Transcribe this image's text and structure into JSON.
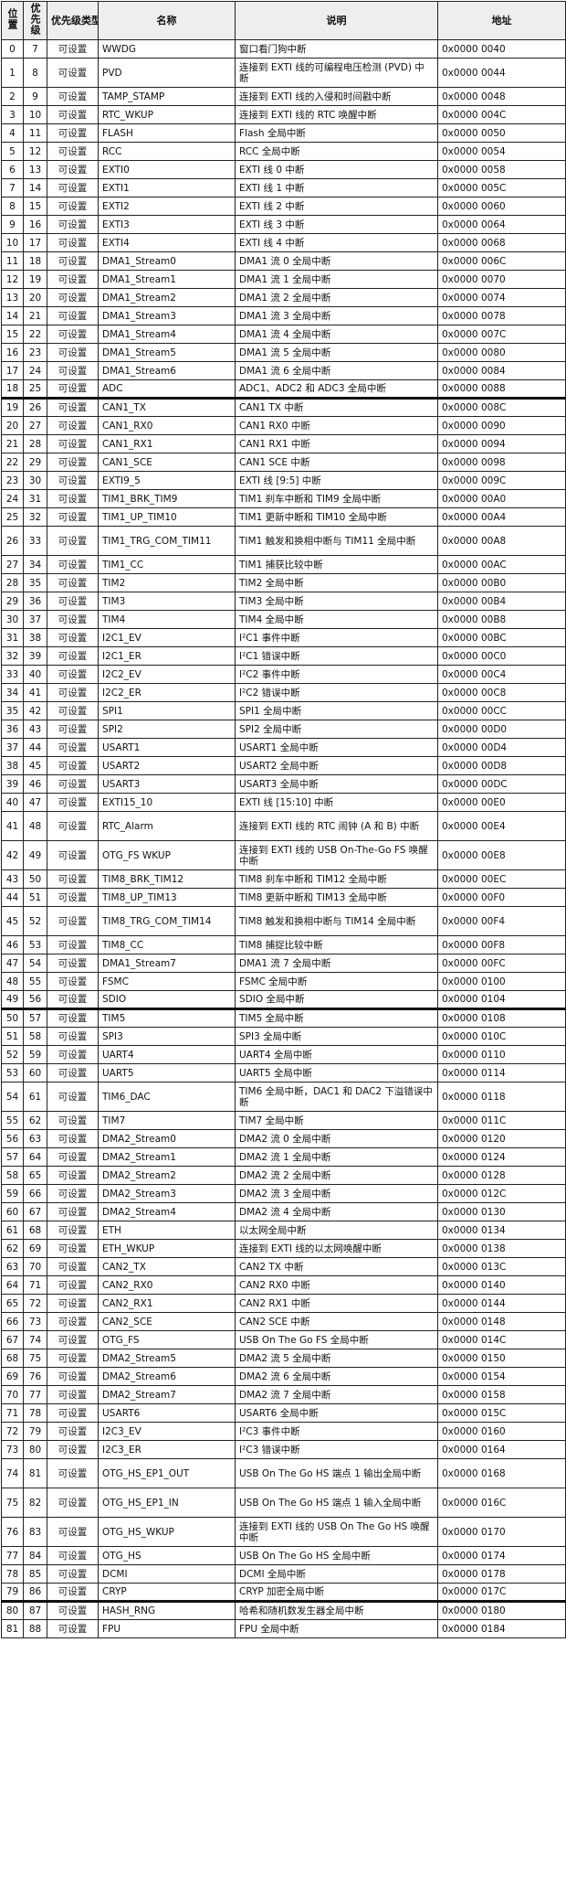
{
  "headers": {
    "position": "位置",
    "priority": "优先级",
    "priority_type": "优先级类型",
    "name": "名称",
    "description": "说明",
    "address": "地址"
  },
  "rows": [
    {
      "pos": "0",
      "pri": "7",
      "type": "可设置",
      "name": "WWDG",
      "desc": "窗口看门狗中断",
      "addr": "0x0000 0040"
    },
    {
      "pos": "1",
      "pri": "8",
      "type": "可设置",
      "name": "PVD",
      "desc": "连接到 EXTI 线的可编程电压检测 (PVD) 中断",
      "addr": "0x0000 0044",
      "tall": true
    },
    {
      "pos": "2",
      "pri": "9",
      "type": "可设置",
      "name": "TAMP_STAMP",
      "desc": "连接到 EXTI 线的入侵和时间戳中断",
      "addr": "0x0000 0048"
    },
    {
      "pos": "3",
      "pri": "10",
      "type": "可设置",
      "name": "RTC_WKUP",
      "desc": "连接到 EXTI 线的 RTC 唤醒中断",
      "addr": "0x0000 004C"
    },
    {
      "pos": "4",
      "pri": "11",
      "type": "可设置",
      "name": "FLASH",
      "desc": "Flash 全局中断",
      "addr": "0x0000 0050"
    },
    {
      "pos": "5",
      "pri": "12",
      "type": "可设置",
      "name": "RCC",
      "desc": "RCC 全局中断",
      "addr": "0x0000 0054"
    },
    {
      "pos": "6",
      "pri": "13",
      "type": "可设置",
      "name": "EXTI0",
      "desc": "EXTI 线 0 中断",
      "addr": "0x0000 0058"
    },
    {
      "pos": "7",
      "pri": "14",
      "type": "可设置",
      "name": "EXTI1",
      "desc": "EXTI 线 1 中断",
      "addr": "0x0000 005C"
    },
    {
      "pos": "8",
      "pri": "15",
      "type": "可设置",
      "name": "EXTI2",
      "desc": "EXTI 线 2 中断",
      "addr": "0x0000 0060"
    },
    {
      "pos": "9",
      "pri": "16",
      "type": "可设置",
      "name": "EXTI3",
      "desc": "EXTI 线 3 中断",
      "addr": "0x0000 0064"
    },
    {
      "pos": "10",
      "pri": "17",
      "type": "可设置",
      "name": "EXTI4",
      "desc": "EXTI 线 4 中断",
      "addr": "0x0000 0068"
    },
    {
      "pos": "11",
      "pri": "18",
      "type": "可设置",
      "name": "DMA1_Stream0",
      "desc": "DMA1 流 0 全局中断",
      "addr": "0x0000 006C"
    },
    {
      "pos": "12",
      "pri": "19",
      "type": "可设置",
      "name": "DMA1_Stream1",
      "desc": "DMA1 流 1 全局中断",
      "addr": "0x0000 0070"
    },
    {
      "pos": "13",
      "pri": "20",
      "type": "可设置",
      "name": "DMA1_Stream2",
      "desc": "DMA1 流 2 全局中断",
      "addr": "0x0000 0074"
    },
    {
      "pos": "14",
      "pri": "21",
      "type": "可设置",
      "name": "DMA1_Stream3",
      "desc": "DMA1 流 3 全局中断",
      "addr": "0x0000 0078"
    },
    {
      "pos": "15",
      "pri": "22",
      "type": "可设置",
      "name": "DMA1_Stream4",
      "desc": "DMA1 流 4 全局中断",
      "addr": "0x0000 007C"
    },
    {
      "pos": "16",
      "pri": "23",
      "type": "可设置",
      "name": "DMA1_Stream5",
      "desc": "DMA1 流 5 全局中断",
      "addr": "0x0000 0080"
    },
    {
      "pos": "17",
      "pri": "24",
      "type": "可设置",
      "name": "DMA1_Stream6",
      "desc": "DMA1 流 6 全局中断",
      "addr": "0x0000 0084"
    },
    {
      "pos": "18",
      "pri": "25",
      "type": "可设置",
      "name": "ADC",
      "desc": "ADC1、ADC2 和 ADC3 全局中断",
      "addr": "0x0000 0088"
    },
    {
      "pos": "19",
      "pri": "26",
      "type": "可设置",
      "name": "CAN1_TX",
      "desc": "CAN1 TX 中断",
      "addr": "0x0000 008C",
      "sep": true
    },
    {
      "pos": "20",
      "pri": "27",
      "type": "可设置",
      "name": "CAN1_RX0",
      "desc": "CAN1 RX0 中断",
      "addr": "0x0000 0090"
    },
    {
      "pos": "21",
      "pri": "28",
      "type": "可设置",
      "name": "CAN1_RX1",
      "desc": "CAN1 RX1 中断",
      "addr": "0x0000 0094"
    },
    {
      "pos": "22",
      "pri": "29",
      "type": "可设置",
      "name": "CAN1_SCE",
      "desc": "CAN1 SCE 中断",
      "addr": "0x0000 0098"
    },
    {
      "pos": "23",
      "pri": "30",
      "type": "可设置",
      "name": "EXTI9_5",
      "desc": "EXTI 线 [9:5] 中断",
      "addr": "0x0000 009C"
    },
    {
      "pos": "24",
      "pri": "31",
      "type": "可设置",
      "name": "TIM1_BRK_TIM9",
      "desc": "TIM1 刹车中断和 TIM9 全局中断",
      "addr": "0x0000 00A0"
    },
    {
      "pos": "25",
      "pri": "32",
      "type": "可设置",
      "name": "TIM1_UP_TIM10",
      "desc": "TIM1 更新中断和 TIM10 全局中断",
      "addr": "0x0000 00A4"
    },
    {
      "pos": "26",
      "pri": "33",
      "type": "可设置",
      "name": "TIM1_TRG_COM_TIM11",
      "desc": "TIM1 触发和换相中断与 TIM11 全局中断",
      "addr": "0x0000 00A8",
      "tall": true
    },
    {
      "pos": "27",
      "pri": "34",
      "type": "可设置",
      "name": "TIM1_CC",
      "desc": "TIM1 捕获比较中断",
      "addr": "0x0000 00AC"
    },
    {
      "pos": "28",
      "pri": "35",
      "type": "可设置",
      "name": "TIM2",
      "desc": "TIM2 全局中断",
      "addr": "0x0000 00B0"
    },
    {
      "pos": "29",
      "pri": "36",
      "type": "可设置",
      "name": "TIM3",
      "desc": "TIM3 全局中断",
      "addr": "0x0000 00B4"
    },
    {
      "pos": "30",
      "pri": "37",
      "type": "可设置",
      "name": "TIM4",
      "desc": "TIM4 全局中断",
      "addr": "0x0000 00B8"
    },
    {
      "pos": "31",
      "pri": "38",
      "type": "可设置",
      "name": "I2C1_EV",
      "desc": "I²C1 事件中断",
      "addr": "0x0000 00BC"
    },
    {
      "pos": "32",
      "pri": "39",
      "type": "可设置",
      "name": "I2C1_ER",
      "desc": "I²C1 错误中断",
      "addr": "0x0000 00C0"
    },
    {
      "pos": "33",
      "pri": "40",
      "type": "可设置",
      "name": "I2C2_EV",
      "desc": "I²C2 事件中断",
      "addr": "0x0000 00C4"
    },
    {
      "pos": "34",
      "pri": "41",
      "type": "可设置",
      "name": "I2C2_ER",
      "desc": "I²C2 错误中断",
      "addr": "0x0000 00C8"
    },
    {
      "pos": "35",
      "pri": "42",
      "type": "可设置",
      "name": "SPI1",
      "desc": "SPI1 全局中断",
      "addr": "0x0000 00CC"
    },
    {
      "pos": "36",
      "pri": "43",
      "type": "可设置",
      "name": "SPI2",
      "desc": "SPI2 全局中断",
      "addr": "0x0000 00D0"
    },
    {
      "pos": "37",
      "pri": "44",
      "type": "可设置",
      "name": "USART1",
      "desc": "USART1 全局中断",
      "addr": "0x0000 00D4"
    },
    {
      "pos": "38",
      "pri": "45",
      "type": "可设置",
      "name": "USART2",
      "desc": "USART2 全局中断",
      "addr": "0x0000 00D8"
    },
    {
      "pos": "39",
      "pri": "46",
      "type": "可设置",
      "name": "USART3",
      "desc": "USART3 全局中断",
      "addr": "0x0000 00DC"
    },
    {
      "pos": "40",
      "pri": "47",
      "type": "可设置",
      "name": "EXTI15_10",
      "desc": "EXTI 线 [15:10] 中断",
      "addr": "0x0000 00E0"
    },
    {
      "pos": "41",
      "pri": "48",
      "type": "可设置",
      "name": "RTC_Alarm",
      "desc": "连接到 EXTI 线的 RTC 闹钟 (A 和 B) 中断",
      "addr": "0x0000 00E4",
      "tall": true
    },
    {
      "pos": "42",
      "pri": "49",
      "type": "可设置",
      "name": "OTG_FS WKUP",
      "desc": "连接到 EXTI 线的 USB On-The-Go FS 唤醒中断",
      "addr": "0x0000 00E8",
      "tall": true
    },
    {
      "pos": "43",
      "pri": "50",
      "type": "可设置",
      "name": "TIM8_BRK_TIM12",
      "desc": "TIM8 刹车中断和 TIM12 全局中断",
      "addr": "0x0000 00EC"
    },
    {
      "pos": "44",
      "pri": "51",
      "type": "可设置",
      "name": "TIM8_UP_TIM13",
      "desc": "TIM8 更新中断和 TIM13 全局中断",
      "addr": "0x0000 00F0"
    },
    {
      "pos": "45",
      "pri": "52",
      "type": "可设置",
      "name": "TIM8_TRG_COM_TIM14",
      "desc": "TIM8 触发和换相中断与 TIM14 全局中断",
      "addr": "0x0000 00F4",
      "tall": true
    },
    {
      "pos": "46",
      "pri": "53",
      "type": "可设置",
      "name": "TIM8_CC",
      "desc": "TIM8 捕捉比较中断",
      "addr": "0x0000 00F8"
    },
    {
      "pos": "47",
      "pri": "54",
      "type": "可设置",
      "name": "DMA1_Stream7",
      "desc": "DMA1 流 7 全局中断",
      "addr": "0x0000 00FC"
    },
    {
      "pos": "48",
      "pri": "55",
      "type": "可设置",
      "name": "FSMC",
      "desc": "FSMC 全局中断",
      "addr": "0x0000 0100"
    },
    {
      "pos": "49",
      "pri": "56",
      "type": "可设置",
      "name": "SDIO",
      "desc": "SDIO 全局中断",
      "addr": "0x0000 0104"
    },
    {
      "pos": "50",
      "pri": "57",
      "type": "可设置",
      "name": "TIM5",
      "desc": "TIM5 全局中断",
      "addr": "0x0000 0108",
      "sep": true
    },
    {
      "pos": "51",
      "pri": "58",
      "type": "可设置",
      "name": "SPI3",
      "desc": "SPI3 全局中断",
      "addr": "0x0000 010C"
    },
    {
      "pos": "52",
      "pri": "59",
      "type": "可设置",
      "name": "UART4",
      "desc": "UART4 全局中断",
      "addr": "0x0000 0110"
    },
    {
      "pos": "53",
      "pri": "60",
      "type": "可设置",
      "name": "UART5",
      "desc": "UART5 全局中断",
      "addr": "0x0000 0114"
    },
    {
      "pos": "54",
      "pri": "61",
      "type": "可设置",
      "name": "TIM6_DAC",
      "desc": "TIM6 全局中断，DAC1 和 DAC2 下溢错误中断",
      "addr": "0x0000 0118",
      "tall": true
    },
    {
      "pos": "55",
      "pri": "62",
      "type": "可设置",
      "name": "TIM7",
      "desc": "TIM7 全局中断",
      "addr": "0x0000 011C"
    },
    {
      "pos": "56",
      "pri": "63",
      "type": "可设置",
      "name": "DMA2_Stream0",
      "desc": "DMA2 流 0 全局中断",
      "addr": "0x0000 0120"
    },
    {
      "pos": "57",
      "pri": "64",
      "type": "可设置",
      "name": "DMA2_Stream1",
      "desc": "DMA2 流 1 全局中断",
      "addr": "0x0000 0124"
    },
    {
      "pos": "58",
      "pri": "65",
      "type": "可设置",
      "name": "DMA2_Stream2",
      "desc": "DMA2 流 2 全局中断",
      "addr": "0x0000 0128"
    },
    {
      "pos": "59",
      "pri": "66",
      "type": "可设置",
      "name": "DMA2_Stream3",
      "desc": "DMA2 流 3 全局中断",
      "addr": "0x0000 012C"
    },
    {
      "pos": "60",
      "pri": "67",
      "type": "可设置",
      "name": "DMA2_Stream4",
      "desc": "DMA2 流 4 全局中断",
      "addr": "0x0000 0130"
    },
    {
      "pos": "61",
      "pri": "68",
      "type": "可设置",
      "name": "ETH",
      "desc": "以太网全局中断",
      "addr": "0x0000 0134"
    },
    {
      "pos": "62",
      "pri": "69",
      "type": "可设置",
      "name": "ETH_WKUP",
      "desc": "连接到 EXTI 线的以太网唤醒中断",
      "addr": "0x0000 0138"
    },
    {
      "pos": "63",
      "pri": "70",
      "type": "可设置",
      "name": "CAN2_TX",
      "desc": "CAN2 TX 中断",
      "addr": "0x0000 013C"
    },
    {
      "pos": "64",
      "pri": "71",
      "type": "可设置",
      "name": "CAN2_RX0",
      "desc": "CAN2 RX0 中断",
      "addr": "0x0000 0140"
    },
    {
      "pos": "65",
      "pri": "72",
      "type": "可设置",
      "name": "CAN2_RX1",
      "desc": "CAN2 RX1 中断",
      "addr": "0x0000 0144"
    },
    {
      "pos": "66",
      "pri": "73",
      "type": "可设置",
      "name": "CAN2_SCE",
      "desc": "CAN2 SCE 中断",
      "addr": "0x0000 0148"
    },
    {
      "pos": "67",
      "pri": "74",
      "type": "可设置",
      "name": "OTG_FS",
      "desc": "USB On The Go FS 全局中断",
      "addr": "0x0000 014C"
    },
    {
      "pos": "68",
      "pri": "75",
      "type": "可设置",
      "name": "DMA2_Stream5",
      "desc": "DMA2 流 5 全局中断",
      "addr": "0x0000 0150"
    },
    {
      "pos": "69",
      "pri": "76",
      "type": "可设置",
      "name": "DMA2_Stream6",
      "desc": "DMA2 流 6 全局中断",
      "addr": "0x0000 0154"
    },
    {
      "pos": "70",
      "pri": "77",
      "type": "可设置",
      "name": "DMA2_Stream7",
      "desc": "DMA2 流 7 全局中断",
      "addr": "0x0000 0158"
    },
    {
      "pos": "71",
      "pri": "78",
      "type": "可设置",
      "name": "USART6",
      "desc": "USART6 全局中断",
      "addr": "0x0000 015C"
    },
    {
      "pos": "72",
      "pri": "79",
      "type": "可设置",
      "name": "I2C3_EV",
      "desc": "I²C3 事件中断",
      "addr": "0x0000 0160"
    },
    {
      "pos": "73",
      "pri": "80",
      "type": "可设置",
      "name": "I2C3_ER",
      "desc": "I²C3 错误中断",
      "addr": "0x0000 0164"
    },
    {
      "pos": "74",
      "pri": "81",
      "type": "可设置",
      "name": "OTG_HS_EP1_OUT",
      "desc": "USB On The Go HS 端点 1 输出全局中断",
      "addr": "0x0000 0168",
      "tall": true
    },
    {
      "pos": "75",
      "pri": "82",
      "type": "可设置",
      "name": "OTG_HS_EP1_IN",
      "desc": "USB On The Go HS 端点 1 输入全局中断",
      "addr": "0x0000 016C",
      "tall": true
    },
    {
      "pos": "76",
      "pri": "83",
      "type": "可设置",
      "name": "OTG_HS_WKUP",
      "desc": "连接到 EXTI 线的 USB On The Go HS 唤醒中断",
      "addr": "0x0000 0170",
      "tall": true
    },
    {
      "pos": "77",
      "pri": "84",
      "type": "可设置",
      "name": "OTG_HS",
      "desc": "USB On The Go HS 全局中断",
      "addr": "0x0000 0174"
    },
    {
      "pos": "78",
      "pri": "85",
      "type": "可设置",
      "name": "DCMI",
      "desc": "DCMI 全局中断",
      "addr": "0x0000 0178"
    },
    {
      "pos": "79",
      "pri": "86",
      "type": "可设置",
      "name": "CRYP",
      "desc": "CRYP 加密全局中断",
      "addr": "0x0000 017C"
    },
    {
      "pos": "80",
      "pri": "87",
      "type": "可设置",
      "name": "HASH_RNG",
      "desc": "哈希和随机数发生器全局中断",
      "addr": "0x0000 0180",
      "sep": true
    },
    {
      "pos": "81",
      "pri": "88",
      "type": "可设置",
      "name": "FPU",
      "desc": "FPU 全局中断",
      "addr": "0x0000 0184"
    }
  ]
}
